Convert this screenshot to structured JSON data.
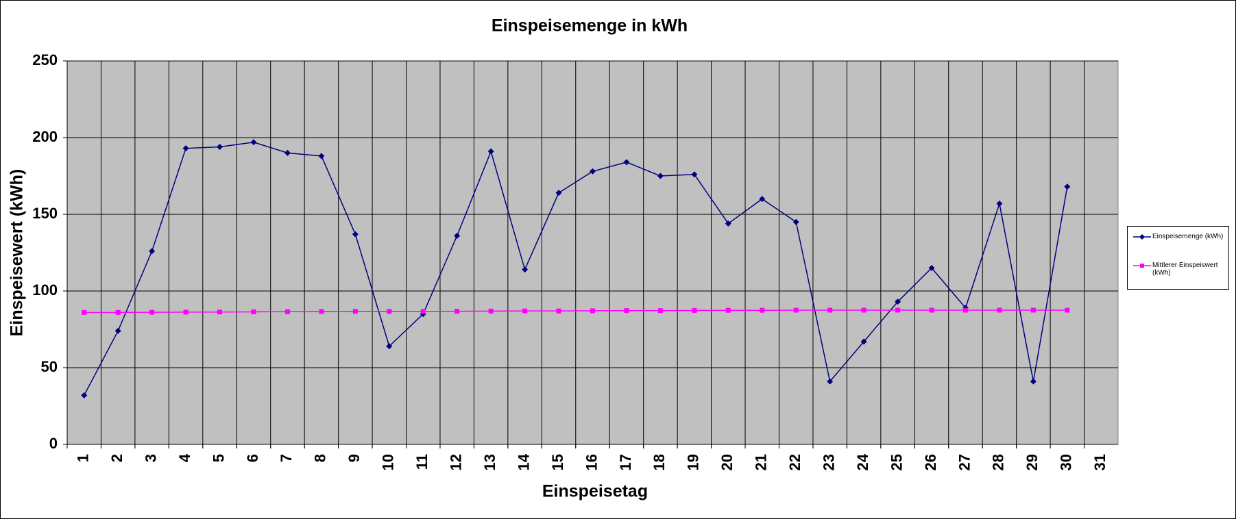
{
  "chart_data": {
    "type": "line",
    "title": "Einspeisemenge in kWh",
    "x_label": "Einspeisetag",
    "y_label": "Einspeisewert  (kWh)",
    "categories": [
      "1",
      "2",
      "3",
      "4",
      "5",
      "6",
      "7",
      "8",
      "9",
      "10",
      "11",
      "12",
      "13",
      "14",
      "15",
      "16",
      "17",
      "18",
      "19",
      "20",
      "21",
      "22",
      "23",
      "24",
      "25",
      "26",
      "27",
      "28",
      "29",
      "30",
      "31"
    ],
    "series": [
      {
        "name": "Einspeisemenge (kWh)",
        "color": "#000080",
        "marker": "diamond",
        "values": [
          32,
          74,
          126,
          193,
          194,
          197,
          190,
          188,
          137,
          64,
          85,
          136,
          191,
          114,
          164,
          178,
          184,
          175,
          176,
          144,
          160,
          145,
          41,
          67,
          93,
          115,
          89,
          157,
          41,
          168,
          null
        ]
      },
      {
        "name": "Mittlerer Einspeiswert (kWh)",
        "color": "#ff00ff",
        "marker": "square",
        "values": [
          86.0,
          86.0,
          86.1,
          86.2,
          86.3,
          86.4,
          86.5,
          86.6,
          86.7,
          86.7,
          86.7,
          86.8,
          86.9,
          87.0,
          87.0,
          87.1,
          87.2,
          87.2,
          87.3,
          87.4,
          87.4,
          87.5,
          87.5,
          87.5,
          87.5,
          87.5,
          87.5,
          87.5,
          87.5,
          87.5,
          null
        ]
      }
    ],
    "ylim": [
      0,
      250
    ],
    "yticks": [
      0,
      50,
      100,
      150,
      200,
      250
    ],
    "grid": true,
    "plot_background": "#c0c0c0",
    "legend": "right"
  }
}
